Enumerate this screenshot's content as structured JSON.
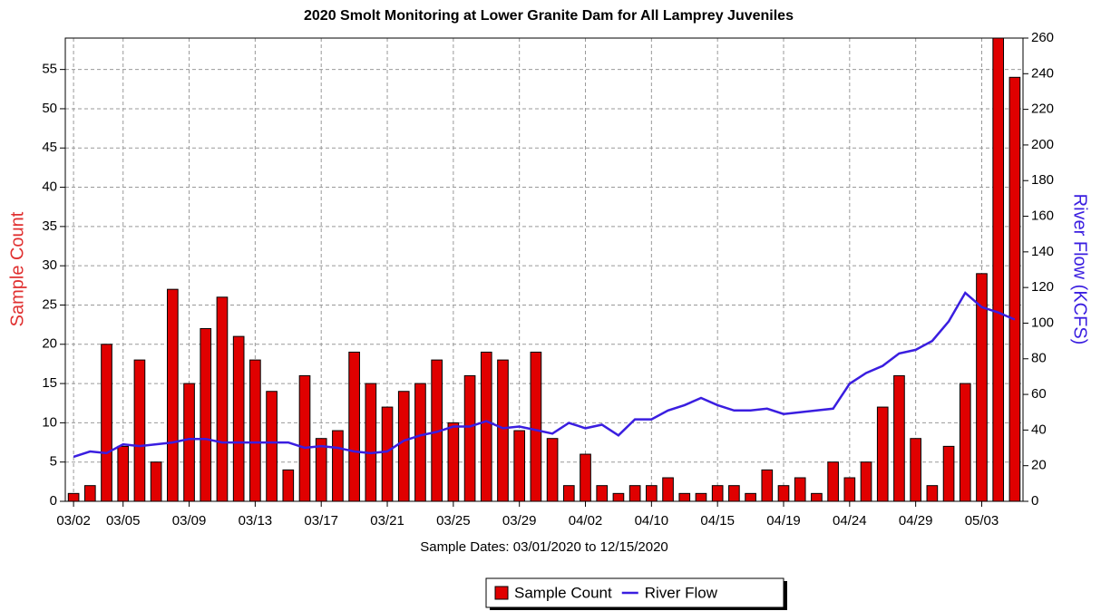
{
  "chart_data": {
    "type": "bar",
    "title": "2020 Smolt Monitoring at Lower Granite Dam for All Lamprey Juveniles",
    "x_label": "Sample Dates: 03/01/2020 to 12/15/2020",
    "y_label": "Sample Count",
    "y2_label": "River Flow (KCFS)",
    "categories": [
      "03/02",
      null,
      null,
      "03/05",
      null,
      null,
      null,
      "03/09",
      null,
      null,
      null,
      "03/13",
      null,
      null,
      null,
      "03/17",
      null,
      null,
      null,
      "03/21",
      null,
      null,
      null,
      "03/25",
      null,
      null,
      null,
      "03/29",
      null,
      null,
      null,
      "04/02",
      null,
      null,
      null,
      "04/10",
      null,
      null,
      null,
      "04/15",
      null,
      null,
      null,
      "04/19",
      null,
      null,
      null,
      "04/24",
      null,
      null,
      null,
      "04/29",
      null,
      null,
      null,
      "05/03",
      null,
      null
    ],
    "series": [
      {
        "name": "Sample Count",
        "type": "bar",
        "color": "#e00000",
        "axis": "y",
        "values": [
          1,
          2,
          20,
          7,
          18,
          5,
          27,
          15,
          22,
          26,
          21,
          18,
          14,
          4,
          16,
          8,
          9,
          19,
          15,
          12,
          14,
          15,
          18,
          10,
          16,
          19,
          18,
          9,
          19,
          8,
          2,
          6,
          2,
          1,
          2,
          2,
          3,
          1,
          1,
          2,
          2,
          1,
          4,
          2,
          3,
          1,
          5,
          3,
          5,
          12,
          16,
          8,
          2,
          7,
          15,
          29,
          60,
          54
        ]
      },
      {
        "name": "River Flow",
        "type": "line",
        "color": "#3a1ee0",
        "axis": "y2",
        "values": [
          25,
          28,
          27,
          32,
          31,
          32,
          33,
          35,
          35,
          33,
          33,
          33,
          33,
          33,
          30,
          31,
          30,
          28,
          27,
          28,
          34,
          37,
          39,
          42,
          42,
          45,
          41,
          42,
          40,
          38,
          44,
          41,
          43,
          37,
          46,
          46,
          51,
          54,
          58,
          54,
          51,
          51,
          52,
          49,
          50,
          51,
          52,
          66,
          72,
          76,
          83,
          85,
          90,
          101,
          117,
          109,
          106,
          102
        ]
      }
    ],
    "ylim": [
      0,
      59
    ],
    "yticks": [
      0,
      5,
      10,
      15,
      20,
      25,
      30,
      35,
      40,
      45,
      50,
      55
    ],
    "y2lim": [
      0,
      260
    ],
    "y2ticks": [
      0,
      20,
      40,
      60,
      80,
      100,
      120,
      140,
      160,
      180,
      200,
      220,
      240,
      260
    ],
    "grid": true,
    "legend": "bottom"
  }
}
